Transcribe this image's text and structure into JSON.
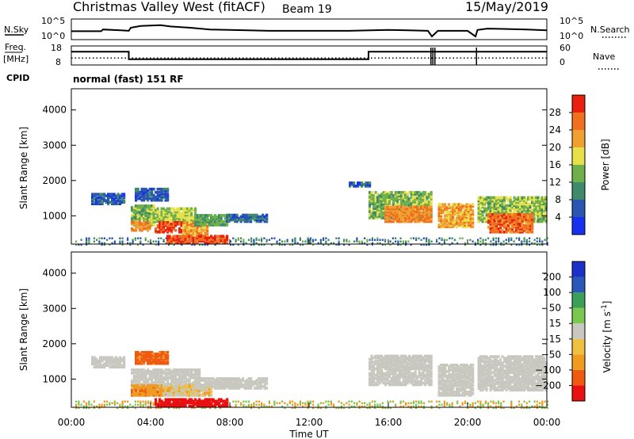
{
  "header": {
    "station": "Christmas Valley West (fitACF)",
    "beam": "Beam 19",
    "date": "15/May/2019"
  },
  "colors": {
    "power_scale": [
      "#1630f0",
      "#2a55b0",
      "#3e8a6a",
      "#6fb04a",
      "#e8e04a",
      "#f0a030",
      "#f07020",
      "#e82010"
    ],
    "velocity_scale": [
      "#e81010",
      "#f05a10",
      "#f09a20",
      "#f0c040",
      "#c8c8c0",
      "#7ac850",
      "#3aa058",
      "#2a58b8",
      "#1a30c8"
    ],
    "noise_scatter": "#5a7ab0"
  },
  "chart_data": [
    {
      "type": "line",
      "title": "N.Sky / N.Search",
      "left_label": "N.Sky",
      "right_label": "N.Search",
      "left_ticks": [
        "10^5",
        "10^0"
      ],
      "right_ticks": [
        "10^5",
        "10^0"
      ],
      "x_domain_hours": [
        0,
        24
      ],
      "series": [
        {
          "x": [
            0,
            1.5,
            1.6,
            2.5,
            2.9,
            3.0,
            3.5,
            4.5,
            5.0,
            6.0,
            7.0,
            8.0,
            10.0,
            12.0,
            14.0,
            16.0,
            17.0,
            18.0,
            18.2,
            18.5,
            20.0,
            20.4,
            20.5,
            21.0,
            23.0,
            24
          ],
          "y": [
            1.2,
            1.2,
            1.6,
            1.4,
            1.3,
            2.0,
            2.4,
            2.6,
            2.3,
            2.0,
            1.6,
            1.5,
            1.3,
            1.3,
            1.3,
            1.5,
            1.4,
            1.3,
            0.0,
            1.3,
            1.3,
            0.0,
            1.5,
            1.8,
            1.6,
            1.4
          ]
        }
      ]
    },
    {
      "type": "line",
      "title": "Freq. / Nave",
      "left_label_lines": [
        "Freq.",
        "[MHz]"
      ],
      "right_label": "Nave",
      "left_ticks": [
        "18",
        "8"
      ],
      "right_ticks": [
        "60",
        "0"
      ],
      "x_domain_hours": [
        0,
        24
      ],
      "series": [
        {
          "name": "Freq.",
          "x": [
            0,
            2.9,
            2.9,
            15.0,
            15.0,
            18.2,
            18.2,
            24
          ],
          "y": [
            15,
            15,
            11,
            11,
            15,
            15,
            15,
            15
          ]
        },
        {
          "name": "Nave",
          "x": [
            0,
            24
          ],
          "y": [
            22,
            22
          ]
        }
      ]
    },
    {
      "type": "table",
      "label": "CPID",
      "program": "normal (fast) 151 RF"
    },
    {
      "type": "heatmap",
      "title": "Power",
      "xlabel": "",
      "ylabel": "Slant Range [km]",
      "ylim": [
        200,
        4600
      ],
      "y_ticks": [
        1000,
        2000,
        3000,
        4000
      ],
      "x_domain_hours": [
        0,
        24
      ],
      "colorbar_label": "Power [dB]",
      "colorbar_ticks": [
        4,
        8,
        12,
        16,
        20,
        24,
        28
      ],
      "colorbar_range": [
        0,
        32
      ],
      "patches": [
        {
          "t0": 1.0,
          "t1": 2.7,
          "r0": 1300,
          "r1": 1580,
          "v": 6
        },
        {
          "t0": 3.0,
          "t1": 4.2,
          "r0": 700,
          "r1": 1250,
          "v": 14
        },
        {
          "t0": 3.0,
          "t1": 4.0,
          "r0": 550,
          "r1": 800,
          "v": 24
        },
        {
          "t0": 4.0,
          "t1": 6.2,
          "r0": 800,
          "r1": 1200,
          "v": 16
        },
        {
          "t0": 4.2,
          "t1": 5.6,
          "r0": 500,
          "r1": 800,
          "v": 28
        },
        {
          "t0": 5.6,
          "t1": 6.8,
          "r0": 400,
          "r1": 800,
          "v": 22
        },
        {
          "t0": 6.2,
          "t1": 7.8,
          "r0": 700,
          "r1": 1000,
          "v": 12
        },
        {
          "t0": 7.8,
          "t1": 9.8,
          "r0": 800,
          "r1": 1000,
          "v": 7
        },
        {
          "t0": 3.2,
          "t1": 4.8,
          "r0": 1400,
          "r1": 1750,
          "v": 6
        },
        {
          "t0": 4.8,
          "t1": 7.8,
          "r0": 200,
          "r1": 400,
          "v": 28
        },
        {
          "t0": 14.0,
          "t1": 15.0,
          "r0": 1800,
          "r1": 1900,
          "v": 6
        },
        {
          "t0": 15.0,
          "t1": 18.2,
          "r0": 900,
          "r1": 1650,
          "v": 14
        },
        {
          "t0": 15.8,
          "t1": 18.2,
          "r0": 800,
          "r1": 1250,
          "v": 24
        },
        {
          "t0": 18.5,
          "t1": 20.3,
          "r0": 650,
          "r1": 1300,
          "v": 22
        },
        {
          "t0": 20.5,
          "t1": 24.0,
          "r0": 800,
          "r1": 1500,
          "v": 15
        },
        {
          "t0": 21.0,
          "t1": 23.3,
          "r0": 500,
          "r1": 1000,
          "v": 26
        }
      ]
    },
    {
      "type": "heatmap",
      "title": "Velocity",
      "xlabel": "Time UT",
      "ylabel": "Slant Range [km]",
      "ylim": [
        200,
        4600
      ],
      "y_ticks": [
        1000,
        2000,
        3000,
        4000
      ],
      "x_ticks": [
        "00:00",
        "04:00",
        "08:00",
        "12:00",
        "16:00",
        "20:00",
        "00:00"
      ],
      "x_domain_hours": [
        0,
        24
      ],
      "colorbar_label": "Velocity [m s-1]",
      "colorbar_ticks": [
        200,
        100,
        50,
        15,
        -15,
        -50,
        -100,
        -200
      ],
      "patches": [
        {
          "t0": 1.0,
          "t1": 2.7,
          "r0": 1300,
          "r1": 1580,
          "v": 0
        },
        {
          "t0": 3.0,
          "t1": 6.4,
          "r0": 500,
          "r1": 1250,
          "v": 0
        },
        {
          "t0": 3.0,
          "t1": 4.6,
          "r0": 500,
          "r1": 800,
          "v": -40
        },
        {
          "t0": 4.6,
          "t1": 7.0,
          "r0": 500,
          "r1": 800,
          "v": -15
        },
        {
          "t0": 6.2,
          "t1": 9.8,
          "r0": 700,
          "r1": 1000,
          "v": 0
        },
        {
          "t0": 3.2,
          "t1": 4.8,
          "r0": 1400,
          "r1": 1750,
          "v": -60
        },
        {
          "t0": 4.2,
          "t1": 7.8,
          "r0": 200,
          "r1": 400,
          "v": -150
        },
        {
          "t0": 15.0,
          "t1": 18.2,
          "r0": 800,
          "r1": 1650,
          "v": 0
        },
        {
          "t0": 18.5,
          "t1": 20.3,
          "r0": 500,
          "r1": 1400,
          "v": 0
        },
        {
          "t0": 20.5,
          "t1": 24.0,
          "r0": 650,
          "r1": 1600,
          "v": 0
        }
      ]
    }
  ]
}
